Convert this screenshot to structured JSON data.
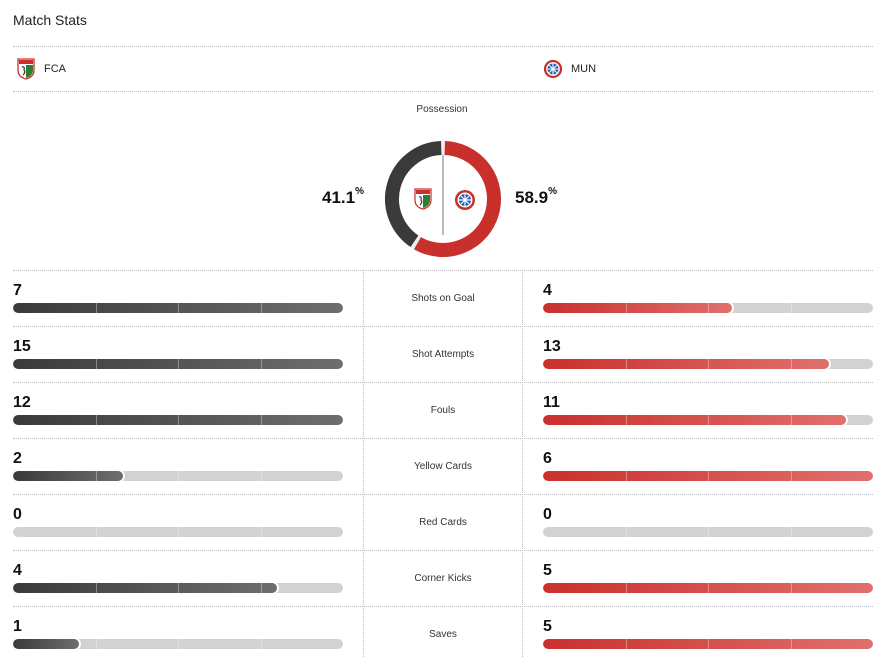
{
  "header": {
    "title": "Match Stats"
  },
  "teams": {
    "home": {
      "abbr": "FCA",
      "color": "#3a3a3a"
    },
    "away": {
      "abbr": "MUN",
      "color": "#c9302c"
    }
  },
  "possession": {
    "label": "Possession",
    "home": 41.1,
    "away": 58.9,
    "home_text": "41.1",
    "away_text": "58.9",
    "unit": "%"
  },
  "stats": [
    {
      "label": "Shots on Goal",
      "home": 7,
      "away": 4,
      "home_text": "7",
      "away_text": "4"
    },
    {
      "label": "Shot Attempts",
      "home": 15,
      "away": 13,
      "home_text": "15",
      "away_text": "13"
    },
    {
      "label": "Fouls",
      "home": 12,
      "away": 11,
      "home_text": "12",
      "away_text": "11"
    },
    {
      "label": "Yellow Cards",
      "home": 2,
      "away": 6,
      "home_text": "2",
      "away_text": "6"
    },
    {
      "label": "Red Cards",
      "home": 0,
      "away": 0,
      "home_text": "0",
      "away_text": "0"
    },
    {
      "label": "Corner Kicks",
      "home": 4,
      "away": 5,
      "home_text": "4",
      "away_text": "5"
    },
    {
      "label": "Saves",
      "home": 1,
      "away": 5,
      "home_text": "1",
      "away_text": "5"
    }
  ]
}
